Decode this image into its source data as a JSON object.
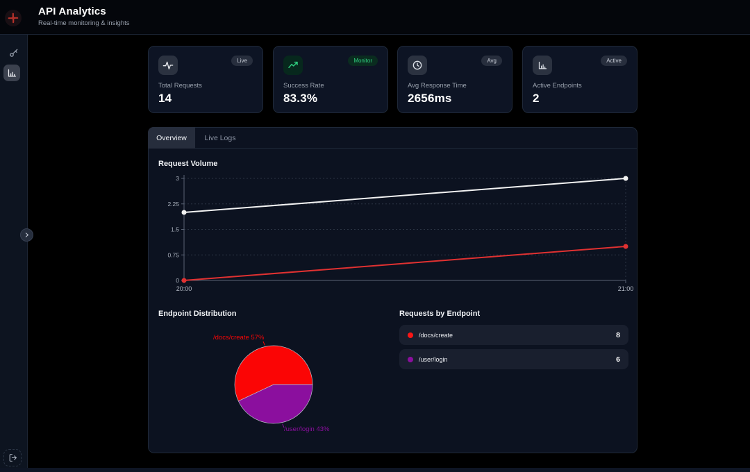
{
  "header": {
    "title": "API Analytics",
    "subtitle": "Real-time monitoring & insights",
    "logo_icon": "red-knot-logo",
    "accent_color": "#b9322b"
  },
  "sidebar": {
    "items": [
      {
        "icon": "key-icon",
        "active": false
      },
      {
        "icon": "bar-chart-icon",
        "active": true
      }
    ],
    "expand_icon": "chevron-right-icon",
    "logout_icon": "logout-icon"
  },
  "stats": [
    {
      "label": "Total Requests",
      "value": "14",
      "badge": "Live",
      "icon": "activity-icon",
      "icon_color": "#e8eaee",
      "icon_bg": "#2b3240",
      "badge_bg": "#272e3d",
      "badge_color": "#c9ced8"
    },
    {
      "label": "Success Rate",
      "value": "83.3%",
      "badge": "Monitor",
      "icon": "trending-up-icon",
      "icon_color": "#2fcf7f",
      "icon_bg": "#07281d",
      "badge_bg": "#0a2c1f",
      "badge_color": "#2fcf7f"
    },
    {
      "label": "Avg Response Time",
      "value": "2656ms",
      "badge": "Avg",
      "icon": "clock-icon",
      "icon_color": "#dde1e8",
      "icon_bg": "#2b3240",
      "badge_bg": "#272e3d",
      "badge_color": "#c9ced8"
    },
    {
      "label": "Active Endpoints",
      "value": "2",
      "badge": "Active",
      "icon": "bar-chart-icon",
      "icon_color": "#dde1e8",
      "icon_bg": "#2b3240",
      "badge_bg": "#272e3d",
      "badge_color": "#c9ced8"
    }
  ],
  "tabs": [
    {
      "label": "Overview",
      "active": true
    },
    {
      "label": "Live Logs",
      "active": false
    }
  ],
  "chart_data": [
    {
      "type": "line",
      "title": "Request Volume",
      "x": [
        "20:00",
        "21:00"
      ],
      "series": [
        {
          "name": "white-series",
          "values": [
            2,
            3
          ],
          "color": "#f2f2f2"
        },
        {
          "name": "red-series",
          "values": [
            0,
            1
          ],
          "color": "#e03131"
        }
      ],
      "ylim": [
        0,
        3
      ],
      "yticks": [
        0,
        0.75,
        1.5,
        2.25,
        3
      ],
      "grid": "dashed",
      "legend": "none"
    },
    {
      "type": "pie",
      "title": "Endpoint Distribution",
      "slices": [
        {
          "label": "/docs/create",
          "pct": 57,
          "color": "#fb0505",
          "label_text": "/docs/create 57%"
        },
        {
          "label": "/user/login",
          "pct": 43,
          "color": "#8b0f9e",
          "label_text": "/user/login 43%"
        }
      ]
    }
  ],
  "requests_by_endpoint": {
    "title": "Requests by Endpoint",
    "rows": [
      {
        "endpoint": "/docs/create",
        "count": "8",
        "dot_color": "#fb1515"
      },
      {
        "endpoint": "/user/login",
        "count": "6",
        "dot_color": "#8b0f9e"
      }
    ]
  }
}
